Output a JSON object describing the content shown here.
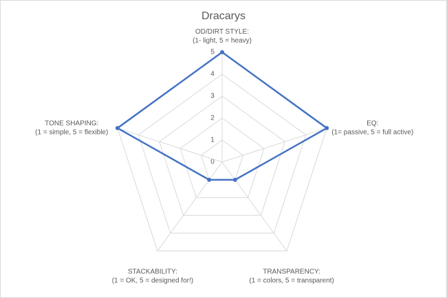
{
  "chart_data": {
    "type": "radar",
    "title": "Dracarys",
    "categories": [
      [
        "OD/DIRT STYLE:",
        "(1- light, 5 = heavy)"
      ],
      [
        "EQ:",
        "(1= passive, 5 = full active)"
      ],
      [
        "TRANSPARENCY:",
        "(1 = colors, 5 = transparent)"
      ],
      [
        "STACKABILITY:",
        "(1 = OK, 5 = designed for!)"
      ],
      [
        "TONE SHAPING:",
        "(1 = simple, 5 = flexible)"
      ]
    ],
    "series": [
      {
        "name": "Dracarys",
        "color": "#4472c4",
        "values": [
          5,
          5,
          1,
          1,
          5
        ]
      }
    ],
    "ylim": [
      0,
      5
    ],
    "yticks": [
      0,
      1,
      2,
      3,
      4,
      5
    ],
    "grid": true
  }
}
